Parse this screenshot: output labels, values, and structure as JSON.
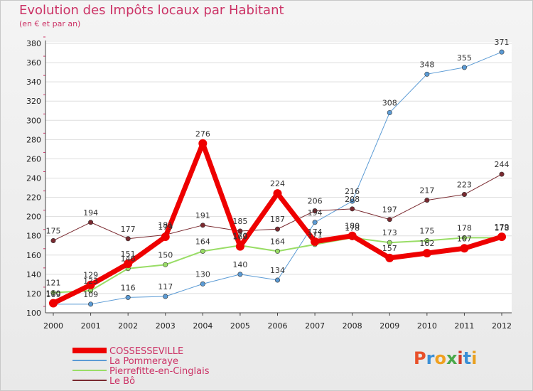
{
  "title": "Evolution des Impôts locaux par Habitant",
  "subtitle": "(en € et par an)",
  "brand": {
    "text": "Proxiti",
    "letter_colors": [
      "#e8502a",
      "#3a8fd6",
      "#f0a020",
      "#4aa84a",
      "#d23c2a",
      "#3a8fd6",
      "#e8a020"
    ]
  },
  "chart_data": {
    "type": "line",
    "x": [
      "2000",
      "2001",
      "2002",
      "2003",
      "2004",
      "2005",
      "2006",
      "2007",
      "2008",
      "2009",
      "2010",
      "2011",
      "2012"
    ],
    "ylim": [
      100,
      380
    ],
    "yticks": [
      100,
      120,
      140,
      160,
      180,
      200,
      220,
      240,
      260,
      280,
      300,
      320,
      340,
      360,
      380
    ],
    "grid": "horizontal",
    "legend_position": "bottom-left",
    "series": [
      {
        "name": "COSSESSEVILLE",
        "color": "#ee0000",
        "width": 7,
        "values": [
          110,
          129,
          151,
          179,
          276,
          169,
          224,
          174,
          180,
          157,
          162,
          167,
          179
        ]
      },
      {
        "name": "La Pommeraye",
        "color": "#5b9bd5",
        "width": 1,
        "values": [
          109,
          109,
          116,
          117,
          130,
          140,
          134,
          194,
          216,
          308,
          348,
          355,
          371
        ]
      },
      {
        "name": "Pierrefitte-en-Cinglais",
        "color": "#99dd66",
        "width": 2,
        "values": [
          121,
          123,
          146,
          150,
          164,
          170,
          164,
          171,
          178,
          173,
          175,
          178,
          178
        ]
      },
      {
        "name": "Le Bô",
        "color": "#7a2a30",
        "width": 1,
        "values": [
          175,
          194,
          177,
          181,
          191,
          185,
          187,
          206,
          208,
          197,
          217,
          223,
          244
        ]
      }
    ]
  }
}
